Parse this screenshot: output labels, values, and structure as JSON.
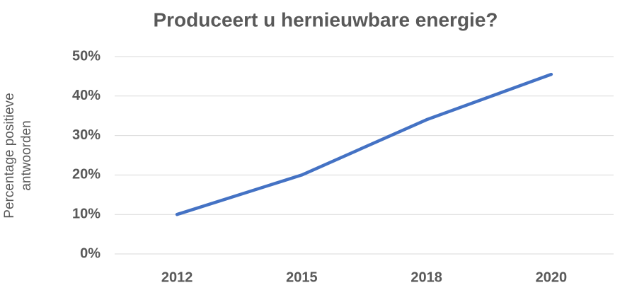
{
  "chart_data": {
    "type": "line",
    "title": "Produceert u hernieuwbare energie?",
    "y_label": [
      "Percentage positieve",
      "antwoorden"
    ],
    "categories": [
      "2012",
      "2015",
      "2018",
      "2020"
    ],
    "values": [
      10,
      20,
      34,
      45.5
    ],
    "color": "#4472c4",
    "ylim": [
      0,
      50
    ],
    "yticks": [
      {
        "value": 0,
        "label": "0%"
      },
      {
        "value": 10,
        "label": "10%"
      },
      {
        "value": 20,
        "label": "20%"
      },
      {
        "value": 30,
        "label": "30%"
      },
      {
        "value": 40,
        "label": "40%"
      },
      {
        "value": 50,
        "label": "50%"
      }
    ],
    "grid": true
  }
}
